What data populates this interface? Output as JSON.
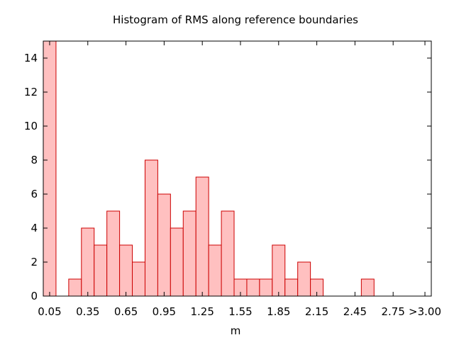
{
  "chart_data": {
    "type": "bar",
    "title": "Histogram of RMS along reference boundaries",
    "xlabel": "m",
    "ylabel": "",
    "bin_width": 0.1,
    "xlim": [
      0.0,
      3.05
    ],
    "ylim": [
      0,
      15
    ],
    "yticks": [
      0,
      2,
      4,
      6,
      8,
      10,
      12,
      14
    ],
    "xticks": [
      {
        "value": 0.05,
        "label": "0.05"
      },
      {
        "value": 0.35,
        "label": "0.35"
      },
      {
        "value": 0.65,
        "label": "0.65"
      },
      {
        "value": 0.95,
        "label": "0.95"
      },
      {
        "value": 1.25,
        "label": "1.25"
      },
      {
        "value": 1.55,
        "label": "1.55"
      },
      {
        "value": 1.85,
        "label": "1.85"
      },
      {
        "value": 2.15,
        "label": "2.15"
      },
      {
        "value": 2.45,
        "label": "2.45"
      },
      {
        "value": 2.75,
        "label": "2.75"
      },
      {
        "value": 3.0,
        "label": ">3.00"
      }
    ],
    "bins": [
      0.05,
      0.25,
      0.35,
      0.45,
      0.55,
      0.65,
      0.75,
      0.85,
      0.95,
      1.05,
      1.15,
      1.25,
      1.35,
      1.45,
      1.55,
      1.65,
      1.75,
      1.85,
      1.95,
      2.05,
      2.15,
      2.55
    ],
    "values": [
      15,
      1,
      4,
      3,
      5,
      3,
      2,
      8,
      6,
      4,
      5,
      7,
      3,
      5,
      1,
      1,
      1,
      3,
      1,
      2,
      1,
      1
    ],
    "bar_fill": "#ffc0c0",
    "bar_stroke": "#cc0000",
    "grid": false,
    "legend": false
  }
}
